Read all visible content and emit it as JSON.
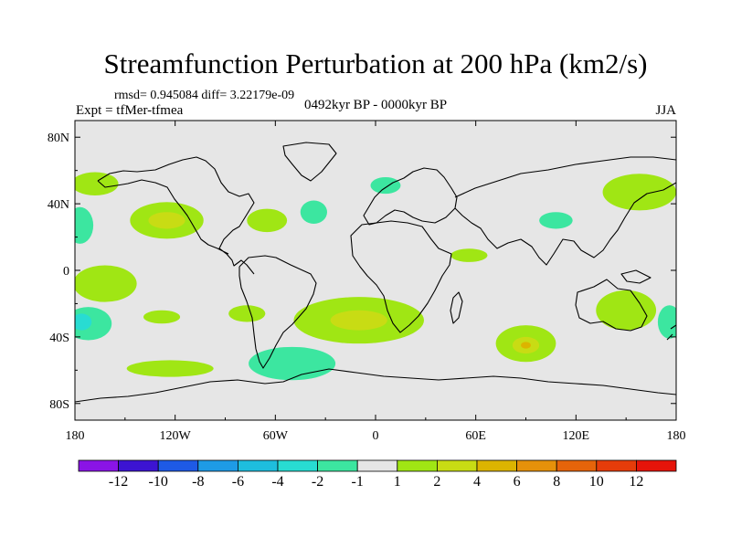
{
  "chart_data": {
    "type": "heatmap",
    "title": "Streamfunction Perturbation at 200 hPa (km2/s)",
    "stats": "rmsd= 0.945084 diff= 3.22179e-09",
    "left_label": "Expt = tfMer-tfmea",
    "center_label": "0492kyr BP - 0000kyr BP",
    "right_label": "JJA",
    "x_range": [
      -180,
      180
    ],
    "y_range": [
      -90,
      90
    ],
    "x_ticks": [
      {
        "value": -180,
        "label": "180"
      },
      {
        "value": -120,
        "label": "120W"
      },
      {
        "value": -60,
        "label": "60W"
      },
      {
        "value": 0,
        "label": "0"
      },
      {
        "value": 60,
        "label": "60E"
      },
      {
        "value": 120,
        "label": "120E"
      },
      {
        "value": 180,
        "label": "180"
      }
    ],
    "y_ticks": [
      {
        "value": 80,
        "label": "80N"
      },
      {
        "value": 40,
        "label": "40N"
      },
      {
        "value": 0,
        "label": "0"
      },
      {
        "value": -40,
        "label": "40S"
      },
      {
        "value": -80,
        "label": "80S"
      }
    ],
    "colorbar": {
      "colors": [
        "#8a14e6",
        "#3c14d2",
        "#1e5ae6",
        "#1e9be6",
        "#1ebede",
        "#28dcd2",
        "#3ce6a0",
        "#e6e6e6",
        "#a0e614",
        "#c8dc14",
        "#dcb400",
        "#e6910a",
        "#e6640a",
        "#e63c0a",
        "#e6140a"
      ],
      "levels": [
        "-12",
        "-10",
        "-8",
        "-6",
        "-4",
        "-2",
        "-1",
        "1",
        "2",
        "4",
        "6",
        "8",
        "10",
        "12"
      ]
    },
    "anomaly_regions": [
      {
        "lon": -168,
        "lat": 52,
        "rlon": 14,
        "rlat": 7,
        "level": 1,
        "color": "#a0e614"
      },
      {
        "lon": -125,
        "lat": 30,
        "rlon": 22,
        "rlat": 11,
        "level": 2,
        "color": "#a0e614"
      },
      {
        "lon": -125,
        "lat": 30,
        "rlon": 11,
        "rlat": 5,
        "level": 3,
        "color": "#c8dc14"
      },
      {
        "lon": -177,
        "lat": 27,
        "rlon": 8,
        "rlat": 11,
        "level": -1,
        "color": "#3ce6a0"
      },
      {
        "lon": -65,
        "lat": 30,
        "rlon": 12,
        "rlat": 7,
        "level": 1,
        "color": "#a0e614"
      },
      {
        "lon": -37,
        "lat": 35,
        "rlon": 8,
        "rlat": 7,
        "level": -1,
        "color": "#3ce6a0"
      },
      {
        "lon": 6,
        "lat": 51,
        "rlon": 9,
        "rlat": 5,
        "level": -1,
        "color": "#3ce6a0"
      },
      {
        "lon": 56,
        "lat": 9,
        "rlon": 11,
        "rlat": 4,
        "level": 1,
        "color": "#a0e614"
      },
      {
        "lon": 108,
        "lat": 30,
        "rlon": 10,
        "rlat": 5,
        "level": -1,
        "color": "#3ce6a0"
      },
      {
        "lon": 158,
        "lat": 47,
        "rlon": 22,
        "rlat": 11,
        "level": 1,
        "color": "#a0e614"
      },
      {
        "lon": -162,
        "lat": -8,
        "rlon": 19,
        "rlat": 11,
        "level": 1,
        "color": "#a0e614"
      },
      {
        "lon": -172,
        "lat": -32,
        "rlon": 14,
        "rlat": 10,
        "level": -1,
        "color": "#3ce6a0"
      },
      {
        "lon": -176,
        "lat": -31,
        "rlon": 6,
        "rlat": 5,
        "level": -2,
        "color": "#28dcd2"
      },
      {
        "lon": -128,
        "lat": -28,
        "rlon": 11,
        "rlat": 4,
        "level": 1,
        "color": "#a0e614"
      },
      {
        "lon": -77,
        "lat": -26,
        "rlon": 11,
        "rlat": 5,
        "level": 1,
        "color": "#a0e614"
      },
      {
        "lon": -10,
        "lat": -30,
        "rlon": 39,
        "rlat": 14,
        "level": 1,
        "color": "#a0e614"
      },
      {
        "lon": -10,
        "lat": -30,
        "rlon": 17,
        "rlat": 6,
        "level": 2,
        "color": "#c8dc14"
      },
      {
        "lon": -123,
        "lat": -59,
        "rlon": 26,
        "rlat": 5,
        "level": 1,
        "color": "#a0e614"
      },
      {
        "lon": -50,
        "lat": -56,
        "rlon": 26,
        "rlat": 10,
        "level": -1,
        "color": "#3ce6a0"
      },
      {
        "lon": 90,
        "lat": -44,
        "rlon": 18,
        "rlat": 11,
        "level": 1,
        "color": "#a0e614"
      },
      {
        "lon": 90,
        "lat": -45,
        "rlon": 8,
        "rlat": 5,
        "level": 2,
        "color": "#c8dc14"
      },
      {
        "lon": 90,
        "lat": -45,
        "rlon": 3,
        "rlat": 2,
        "level": 3,
        "color": "#dcb400"
      },
      {
        "lon": 150,
        "lat": -24,
        "rlon": 18,
        "rlat": 12,
        "level": 1,
        "color": "#a0e614"
      },
      {
        "lon": 176,
        "lat": -31,
        "rlon": 7,
        "rlat": 10,
        "level": -1,
        "color": "#3ce6a0"
      }
    ]
  }
}
